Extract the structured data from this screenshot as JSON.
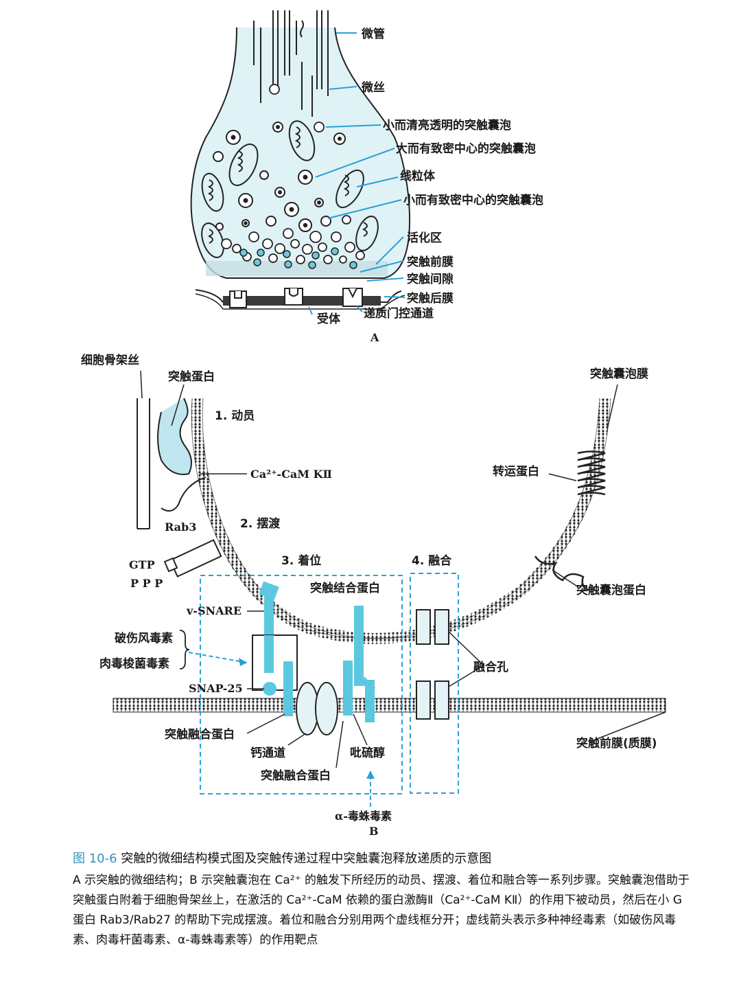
{
  "panel_a": {
    "label": "A",
    "labels": {
      "microtubule": "微管",
      "microfilament": "微丝",
      "small_clear_vesicle": "小而清亮透明的突触囊泡",
      "large_dense_core_vesicle": "大而有致密中心的突触囊泡",
      "mitochondrion": "线粒体",
      "small_dense_core_vesicle": "小而有致密中心的突触囊泡",
      "active_zone": "活化区",
      "presynaptic_membrane": "突触前膜",
      "synaptic_cleft": "突触间隙",
      "postsynaptic_membrane": "突触后膜",
      "receptor": "受体",
      "transmitter_gated_channel": "递质门控通道"
    }
  },
  "panel_b": {
    "label": "B",
    "labels": {
      "cytoskeleton": "细胞骨架丝",
      "synapsin": "突触蛋白",
      "step1": "1. 动员",
      "camk": "Ca²⁺-CaM KⅡ",
      "rab3": "Rab3",
      "step2": "2. 摆渡",
      "gtp": "GTP",
      "ppp": "P P P",
      "step3": "3. 着位",
      "step4": "4. 融合",
      "synaptotagmin": "突触结合蛋白",
      "vsnare": "v-SNARE",
      "tetanus": "破伤风毒素",
      "botulinum": "肉毒梭菌毒素",
      "snap25": "SNAP-25",
      "syntaxin_left": "突触融合蛋白",
      "calcium_channel": "钙通道",
      "syntaxin_bottom": "突触融合蛋白",
      "piperidine": "吡硫醇",
      "alpha_toxin": "α-毒蛛毒素",
      "vesicle_membrane": "突触囊泡膜",
      "transporter": "转运蛋白",
      "synaptophysin": "突触囊泡蛋白",
      "fusion_pore": "融合孔",
      "presyn_plasma": "突触前膜(质膜)"
    }
  },
  "caption": {
    "figure_number": "图 10-6",
    "title": "突触的微细结构模式图及突触传递过程中突触囊泡释放递质的示意图",
    "body": "A 示突触的微细结构；B 示突触囊泡在 Ca²⁺ 的触发下所经历的动员、摆渡、着位和融合等一系列步骤。突触囊泡借助于突触蛋白附着于细胞骨架丝上，在激活的 Ca²⁺-CaM 依赖的蛋白激酶Ⅱ（Ca²⁺-CaM KⅡ）的作用下被动员，然后在小 G 蛋白 Rab3/Rab27 的帮助下完成摆渡。着位和融合分别用两个虚线框分开；虚线箭头表示多种神经毒素（如破伤风毒素、肉毒杆菌毒素、α-毒蛛毒素等）的作用靶点"
  },
  "colors": {
    "accent": "#5bc8e0",
    "pale": "#d9f0f4",
    "line": "#2a9fd6"
  }
}
